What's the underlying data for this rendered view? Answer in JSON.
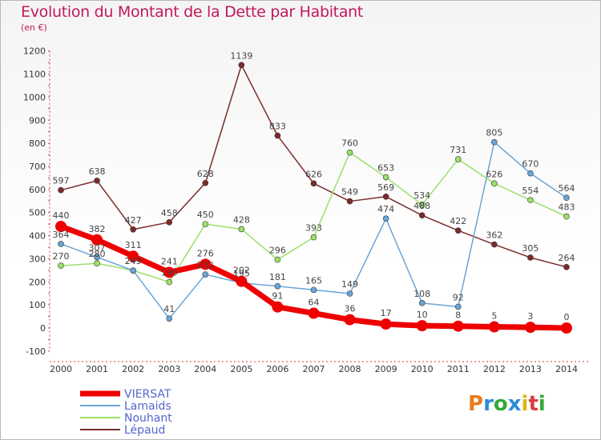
{
  "header": {
    "title": "Evolution du Montant de la Dette par Habitant",
    "subtitle": "(en €)"
  },
  "brand": {
    "logo_text": "Proxiti"
  },
  "chart_data": {
    "type": "line",
    "title": "Evolution du Montant de la Dette par Habitant",
    "subtitle": "(en €)",
    "xlabel": "",
    "ylabel": "",
    "ylim": [
      -100,
      1200
    ],
    "yticks": [
      -100,
      0,
      100,
      200,
      300,
      400,
      500,
      600,
      700,
      800,
      900,
      1000,
      1100,
      1200
    ],
    "categories": [
      "2000",
      "2001",
      "2002",
      "2003",
      "2004",
      "2005",
      "2006",
      "2007",
      "2008",
      "2009",
      "2010",
      "2011",
      "2012",
      "2013",
      "2014"
    ],
    "legend_position": "bottom-left",
    "grid": false,
    "series": [
      {
        "name": "VIERSAT",
        "color": "#ee0000",
        "width": 7,
        "marker": 7,
        "values": [
          440,
          382,
          311,
          241,
          276,
          202,
          91,
          64,
          36,
          17,
          10,
          8,
          5,
          3,
          0
        ]
      },
      {
        "name": "Lamaids",
        "color": "#6aa5d8",
        "width": 1.5,
        "marker": 3.5,
        "values": [
          364,
          307,
          249,
          41,
          232,
          195,
          181,
          165,
          149,
          474,
          108,
          92,
          805,
          670,
          564
        ]
      },
      {
        "name": "Nouhant",
        "color": "#9be06a",
        "width": 1.5,
        "marker": 3.5,
        "values": [
          270,
          280,
          249,
          199,
          450,
          428,
          296,
          393,
          760,
          653,
          534,
          731,
          626,
          554,
          483
        ]
      },
      {
        "name": "Lépaud",
        "color": "#7b2b2b",
        "width": 1.5,
        "marker": 3.5,
        "values": [
          597,
          638,
          427,
          458,
          628,
          1139,
          833,
          626,
          549,
          569,
          488,
          422,
          362,
          305,
          264
        ]
      }
    ]
  }
}
